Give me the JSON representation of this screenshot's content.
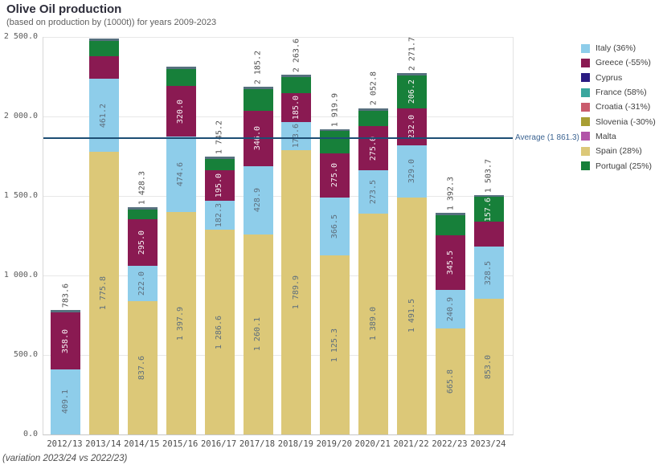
{
  "header": {
    "title": "Olive Oil production",
    "subtitle": "(based on production by (1000t)) for years 2009-2023"
  },
  "chart_data": {
    "type": "bar",
    "variant": "stacked",
    "title": "Olive Oil production",
    "subtitle": "(based on production by (1000t)) for years 2009-2023",
    "footnote": "(variation 2023/24 vs 2022/23)",
    "unit": "1000t",
    "grid": true,
    "legend_position": "right",
    "y_axis": {
      "min": 0,
      "max": 2500,
      "ticks": [
        {
          "label": "2 500.0",
          "value": 2500
        },
        {
          "label": "2 000.0",
          "value": 2000
        },
        {
          "label": "1 500.0",
          "value": 1500
        },
        {
          "label": "1 000.0",
          "value": 1000
        },
        {
          "label": "500.0",
          "value": 500
        },
        {
          "label": "0.0",
          "value": 0
        }
      ]
    },
    "categories": [
      "2012/13",
      "2013/14",
      "2014/15",
      "2015/16",
      "2016/17",
      "2017/18",
      "2018/19",
      "2019/20",
      "2020/21",
      "2021/22",
      "2022/23",
      "2023/24"
    ],
    "average": {
      "value": 1861.3,
      "label": "Average (1 861.3)",
      "line_color": "#1d4e74"
    },
    "series_colors": {
      "italy": "#8ecdea",
      "greece": "#8a1a52",
      "cyprus": "#2b1c82",
      "france": "#3aa79e",
      "croatia": "#ca5c6d",
      "slovenia": "#a89e33",
      "malta": "#b254a8",
      "spain": "#dcc878",
      "portugal": "#17803a",
      "others": "#56707e"
    },
    "legend": [
      {
        "series": "italy",
        "label": "Italy (36%)",
        "color": "#8ecdea"
      },
      {
        "series": "greece",
        "label": "Greece (-55%)",
        "color": "#8a1a52"
      },
      {
        "series": "cyprus",
        "label": "Cyprus",
        "color": "#2b1c82"
      },
      {
        "series": "france",
        "label": "France (58%)",
        "color": "#3aa79e"
      },
      {
        "series": "croatia",
        "label": "Croatia (-31%)",
        "color": "#ca5c6d"
      },
      {
        "series": "slovenia",
        "label": "Slovenia (-30%)",
        "color": "#a89e33"
      },
      {
        "series": "malta",
        "label": "Malta",
        "color": "#b254a8"
      },
      {
        "series": "spain",
        "label": "Spain (28%)",
        "color": "#dcc878"
      },
      {
        "series": "portugal",
        "label": "Portugal (25%)",
        "color": "#17803a"
      }
    ],
    "bars": [
      {
        "category": "2012/13",
        "total": 783.6,
        "total_label": "783.6",
        "segments": [
          {
            "name": "italy",
            "value": 409.1,
            "label": "409.1"
          },
          {
            "name": "greece",
            "value": 358.0,
            "label": "358.0"
          },
          {
            "name": "others",
            "value": 16.5,
            "label": null
          }
        ]
      },
      {
        "category": "2013/14",
        "total": 2490.0,
        "total_label": null,
        "segments": [
          {
            "name": "spain",
            "value": 1775.8,
            "label": "1 775.8"
          },
          {
            "name": "italy",
            "value": 461.2,
            "label": "461.2"
          },
          {
            "name": "greece",
            "value": 140.0,
            "label": null
          },
          {
            "name": "portugal",
            "value": 100.0,
            "label": null
          },
          {
            "name": "others",
            "value": 13.0,
            "label": null
          }
        ]
      },
      {
        "category": "2014/15",
        "total": 1428.3,
        "total_label": "1 428.3",
        "segments": [
          {
            "name": "spain",
            "value": 837.6,
            "label": "837.6"
          },
          {
            "name": "italy",
            "value": 222.0,
            "label": "222.0"
          },
          {
            "name": "greece",
            "value": 295.0,
            "label": "295.0"
          },
          {
            "name": "portugal",
            "value": 61.0,
            "label": null
          },
          {
            "name": "others",
            "value": 12.7,
            "label": null
          }
        ]
      },
      {
        "category": "2015/16",
        "total": 2315.5,
        "total_label": null,
        "segments": [
          {
            "name": "spain",
            "value": 1397.9,
            "label": "1 397.9"
          },
          {
            "name": "italy",
            "value": 474.6,
            "label": "474.6"
          },
          {
            "name": "greece",
            "value": 320.0,
            "label": "320.0"
          },
          {
            "name": "portugal",
            "value": 106.0,
            "label": null
          },
          {
            "name": "others",
            "value": 17.0,
            "label": null
          }
        ]
      },
      {
        "category": "2016/17",
        "total": 1745.2,
        "total_label": "1 745.2",
        "segments": [
          {
            "name": "spain",
            "value": 1286.6,
            "label": "1 286.6"
          },
          {
            "name": "italy",
            "value": 182.3,
            "label": "182.3"
          },
          {
            "name": "greece",
            "value": 195.0,
            "label": "195.0"
          },
          {
            "name": "portugal",
            "value": 69.0,
            "label": null
          },
          {
            "name": "others",
            "value": 12.3,
            "label": null
          }
        ]
      },
      {
        "category": "2017/18",
        "total": 2185.2,
        "total_label": "2 185.2",
        "segments": [
          {
            "name": "spain",
            "value": 1260.1,
            "label": "1 260.1"
          },
          {
            "name": "italy",
            "value": 428.9,
            "label": "428.9"
          },
          {
            "name": "greece",
            "value": 346.0,
            "label": "346.0"
          },
          {
            "name": "portugal",
            "value": 135.0,
            "label": null
          },
          {
            "name": "others",
            "value": 15.2,
            "label": null
          }
        ]
      },
      {
        "category": "2018/19",
        "total": 2263.6,
        "total_label": "2 263.6",
        "segments": [
          {
            "name": "spain",
            "value": 1789.9,
            "label": "1 789.9"
          },
          {
            "name": "italy",
            "value": 173.6,
            "label": "173.6"
          },
          {
            "name": "greece",
            "value": 185.0,
            "label": "185.0"
          },
          {
            "name": "portugal",
            "value": 100.0,
            "label": null
          },
          {
            "name": "others",
            "value": 15.1,
            "label": null
          }
        ]
      },
      {
        "category": "2019/20",
        "total": 1919.9,
        "total_label": "1 919.9",
        "segments": [
          {
            "name": "spain",
            "value": 1125.3,
            "label": "1 125.3"
          },
          {
            "name": "italy",
            "value": 366.5,
            "label": "366.5"
          },
          {
            "name": "greece",
            "value": 275.0,
            "label": "275.0"
          },
          {
            "name": "portugal",
            "value": 140.0,
            "label": null
          },
          {
            "name": "others",
            "value": 13.1,
            "label": null
          }
        ]
      },
      {
        "category": "2020/21",
        "total": 2052.8,
        "total_label": "2 052.8",
        "segments": [
          {
            "name": "spain",
            "value": 1389.0,
            "label": "1 389.0"
          },
          {
            "name": "italy",
            "value": 273.5,
            "label": "273.5"
          },
          {
            "name": "greece",
            "value": 275.0,
            "label": "275.0"
          },
          {
            "name": "portugal",
            "value": 100.0,
            "label": null
          },
          {
            "name": "others",
            "value": 15.3,
            "label": null
          }
        ]
      },
      {
        "category": "2021/22",
        "total": 2271.7,
        "total_label": "2 271.7",
        "segments": [
          {
            "name": "spain",
            "value": 1491.5,
            "label": "1 491.5"
          },
          {
            "name": "italy",
            "value": 329.0,
            "label": "329.0"
          },
          {
            "name": "greece",
            "value": 232.0,
            "label": "232.0"
          },
          {
            "name": "portugal",
            "value": 206.2,
            "label": "206.2"
          },
          {
            "name": "others",
            "value": 13.0,
            "label": null
          }
        ]
      },
      {
        "category": "2022/23",
        "total": 1392.3,
        "total_label": "1 392.3",
        "segments": [
          {
            "name": "spain",
            "value": 665.8,
            "label": "665.8"
          },
          {
            "name": "italy",
            "value": 240.9,
            "label": "240.9"
          },
          {
            "name": "greece",
            "value": 345.5,
            "label": "345.5"
          },
          {
            "name": "portugal",
            "value": 126.1,
            "label": null
          },
          {
            "name": "others",
            "value": 14.0,
            "label": null
          }
        ]
      },
      {
        "category": "2023/24",
        "total": 1503.7,
        "total_label": "1 503.7",
        "segments": [
          {
            "name": "spain",
            "value": 853.0,
            "label": "853.0"
          },
          {
            "name": "italy",
            "value": 328.5,
            "label": "328.5"
          },
          {
            "name": "greece",
            "value": 155.4,
            "label": null
          },
          {
            "name": "portugal",
            "value": 157.6,
            "label": "157.6"
          },
          {
            "name": "others",
            "value": 9.2,
            "label": null
          }
        ]
      }
    ]
  }
}
